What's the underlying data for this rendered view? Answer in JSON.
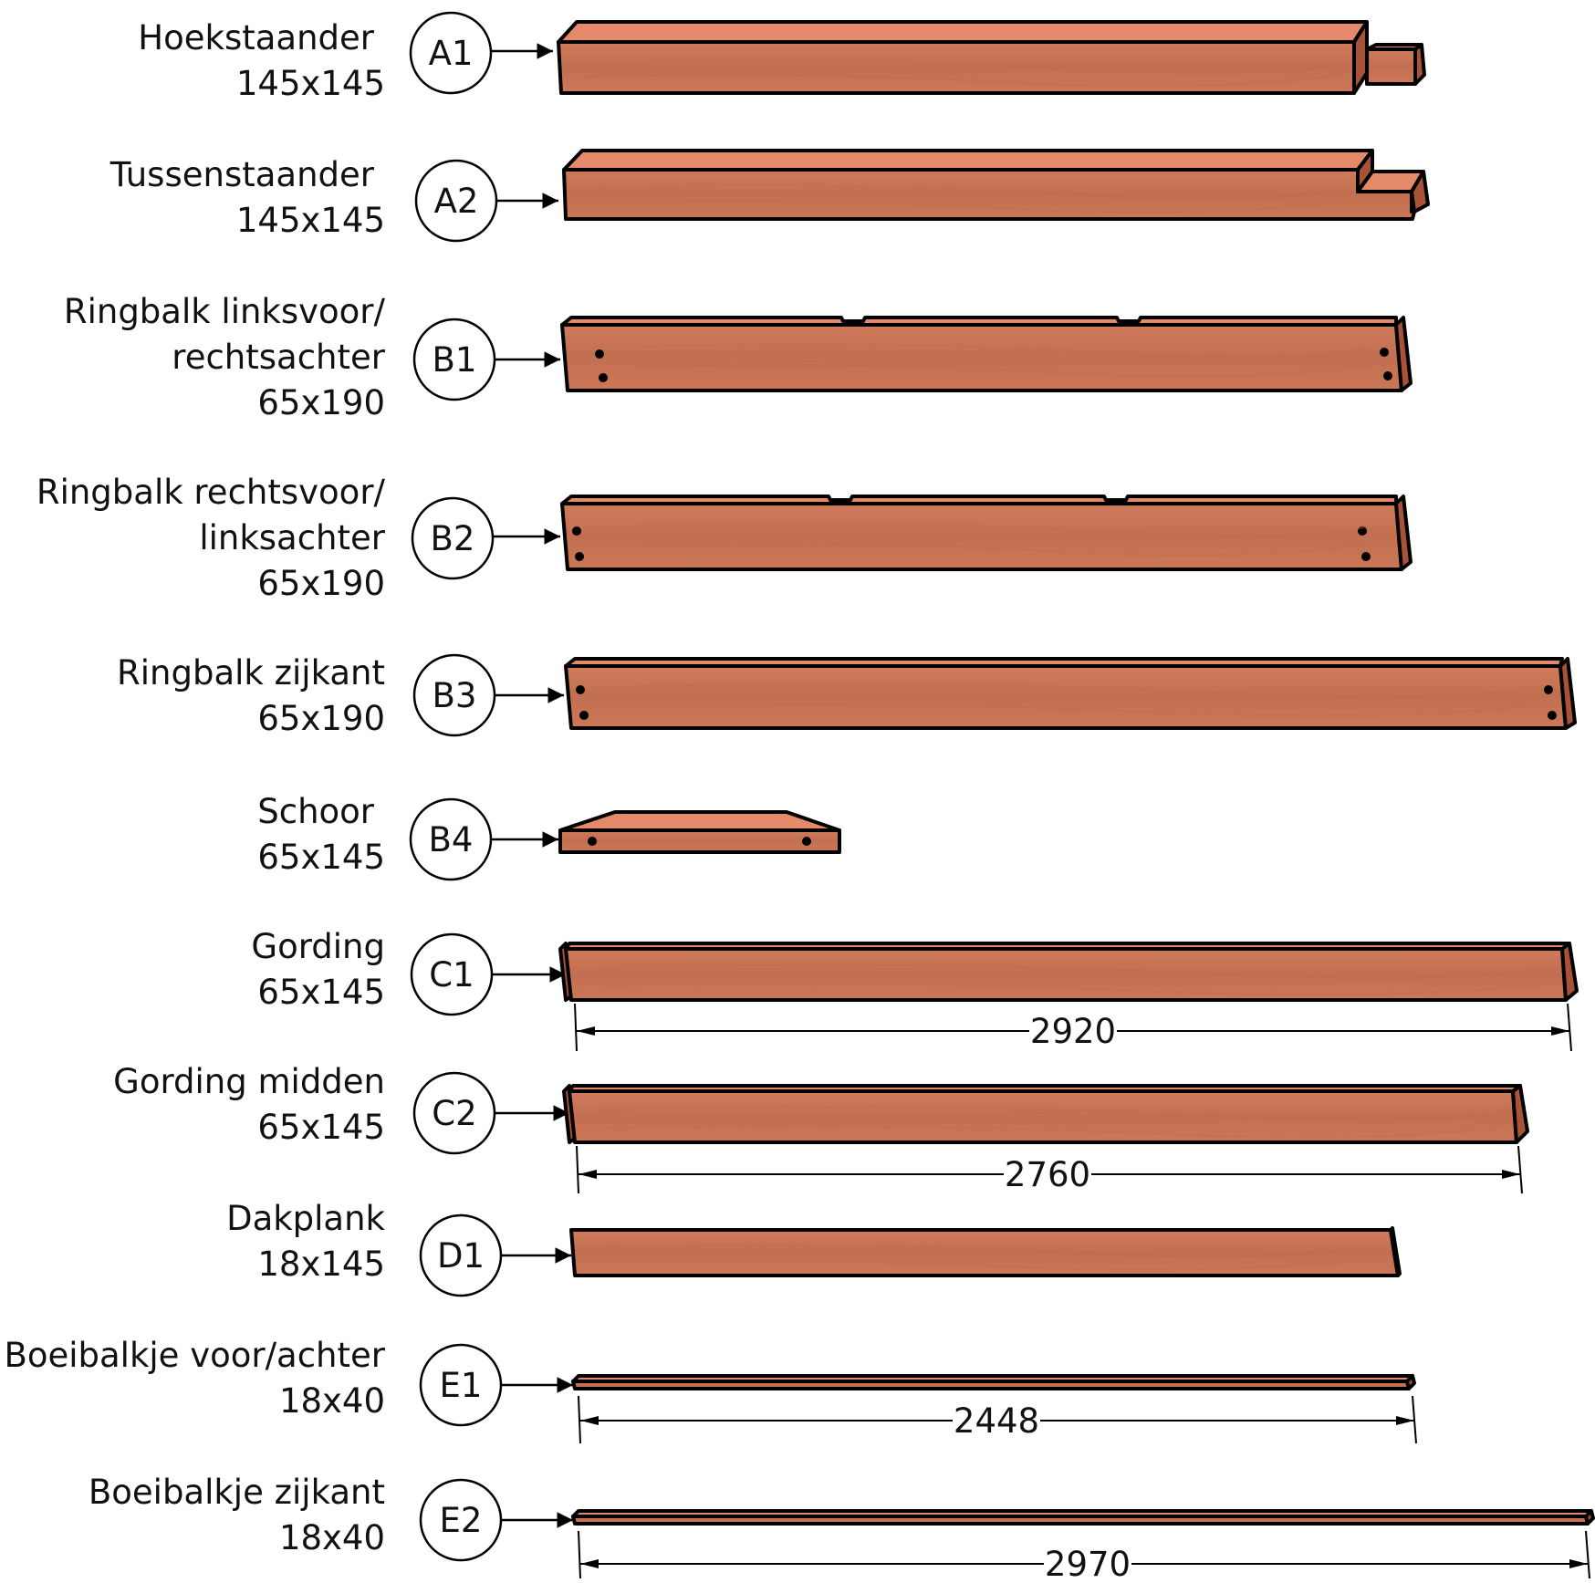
{
  "colors": {
    "wood_front": "#c97758",
    "wood_top": "#e48a6a",
    "wood_end": "#a85337",
    "outline": "#000000"
  },
  "parts": [
    {
      "code": "A1",
      "name": [
        "Hoekstaander"
      ],
      "size": "145x145",
      "dimension": ""
    },
    {
      "code": "A2",
      "name": [
        "Tussenstaander"
      ],
      "size": "145x145",
      "dimension": ""
    },
    {
      "code": "B1",
      "name": [
        "Ringbalk linksvoor/",
        "rechtsachter"
      ],
      "size": "65x190",
      "dimension": ""
    },
    {
      "code": "B2",
      "name": [
        "Ringbalk rechtsvoor/",
        "linksachter"
      ],
      "size": "65x190",
      "dimension": ""
    },
    {
      "code": "B3",
      "name": [
        "Ringbalk zijkant"
      ],
      "size": "65x190",
      "dimension": ""
    },
    {
      "code": "B4",
      "name": [
        "Schoor"
      ],
      "size": "65x145",
      "dimension": ""
    },
    {
      "code": "C1",
      "name": [
        "Gording"
      ],
      "size": "65x145",
      "dimension": "2920"
    },
    {
      "code": "C2",
      "name": [
        "Gording midden"
      ],
      "size": "65x145",
      "dimension": "2760"
    },
    {
      "code": "D1",
      "name": [
        "Dakplank"
      ],
      "size": "18x145",
      "dimension": ""
    },
    {
      "code": "E1",
      "name": [
        "Boeibalkje voor/achter"
      ],
      "size": "18x40",
      "dimension": "2448"
    },
    {
      "code": "E2",
      "name": [
        "Boeibalkje zijkant"
      ],
      "size": "18x40",
      "dimension": "2970"
    }
  ]
}
